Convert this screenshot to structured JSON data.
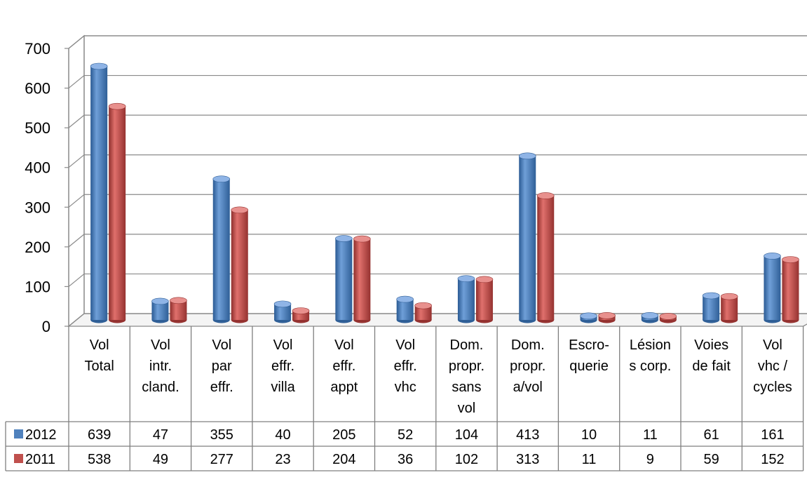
{
  "chart_data": {
    "type": "bar",
    "title": "",
    "xlabel": "",
    "ylabel": "",
    "ylim": [
      0,
      700
    ],
    "yticks": [
      0,
      100,
      200,
      300,
      400,
      500,
      600,
      700
    ],
    "grid": true,
    "style": "3d-cylinder",
    "legend_placement": "data-table",
    "categories": [
      [
        "Vol",
        "Total"
      ],
      [
        "Vol",
        "intr.",
        "cland."
      ],
      [
        "Vol",
        "par",
        "effr."
      ],
      [
        "Vol",
        "effr.",
        "villa"
      ],
      [
        "Vol",
        "effr.",
        "appt"
      ],
      [
        "Vol",
        "effr.",
        "vhc"
      ],
      [
        "Dom.",
        "propr.",
        "sans",
        "vol"
      ],
      [
        "Dom.",
        "propr.",
        "a/vol"
      ],
      [
        "Escro-",
        "querie"
      ],
      [
        "Lésion",
        "s corp."
      ],
      [
        "Voies",
        "de fait"
      ],
      [
        "Vol",
        "vhc /",
        "cycles"
      ]
    ],
    "series": [
      {
        "name": "2012",
        "color": "#4F81BD",
        "values": [
          639,
          47,
          355,
          40,
          205,
          52,
          104,
          413,
          10,
          11,
          61,
          161
        ]
      },
      {
        "name": "2011",
        "color": "#C0504D",
        "values": [
          538,
          49,
          277,
          23,
          204,
          36,
          102,
          313,
          11,
          9,
          59,
          152
        ]
      }
    ]
  }
}
